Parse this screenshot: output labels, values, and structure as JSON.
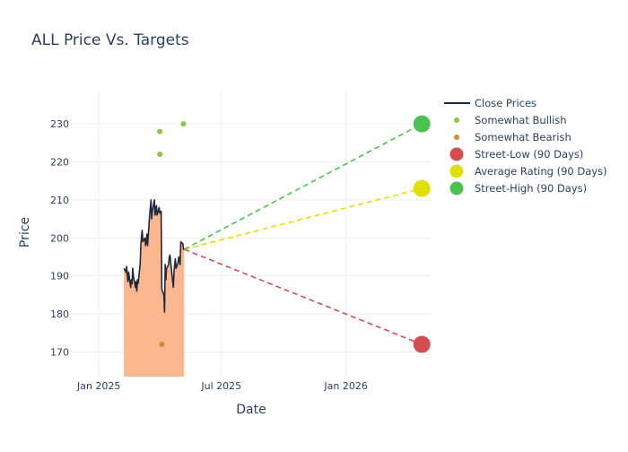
{
  "chart_data": {
    "type": "line",
    "title": "ALL Price Vs. Targets",
    "xlabel": "Date",
    "ylabel": "Price",
    "x_range": [
      "2024-11-22",
      "2026-05-06"
    ],
    "ylim": [
      163.5,
      239
    ],
    "x_ticks": [
      {
        "date": "2025-01-01",
        "label": "Jan 2025"
      },
      {
        "date": "2025-07-01",
        "label": "Jul 2025"
      },
      {
        "date": "2026-01-01",
        "label": "Jan 2026"
      }
    ],
    "y_ticks": [
      170,
      180,
      190,
      200,
      210,
      220,
      230
    ],
    "grid": true,
    "legend_position": "top-right",
    "colors": {
      "close": "#1f2a3c",
      "fill": "#fbb790",
      "bullish": "#8dc63f",
      "bearish": "#d4892a",
      "low": "#d64c4f",
      "avg": "#e0e000",
      "high": "#4cc24e",
      "text": "#2a3f5f"
    },
    "series": [
      {
        "name": "Close Prices",
        "type": "line",
        "x": [
          "2025-02-07",
          "2025-02-10",
          "2025-02-11",
          "2025-02-12",
          "2025-02-13",
          "2025-02-14",
          "2025-02-17",
          "2025-02-18",
          "2025-02-19",
          "2025-02-20",
          "2025-02-21",
          "2025-02-24",
          "2025-02-25",
          "2025-02-26",
          "2025-02-27",
          "2025-02-28",
          "2025-03-03",
          "2025-03-04",
          "2025-03-05",
          "2025-03-06",
          "2025-03-07",
          "2025-03-10",
          "2025-03-11",
          "2025-03-12",
          "2025-03-13",
          "2025-03-14",
          "2025-03-17",
          "2025-03-18",
          "2025-03-19",
          "2025-03-20",
          "2025-03-21",
          "2025-03-24",
          "2025-03-25",
          "2025-03-26",
          "2025-03-27",
          "2025-03-28",
          "2025-03-31",
          "2025-04-01",
          "2025-04-02",
          "2025-04-03",
          "2025-04-04",
          "2025-04-07",
          "2025-04-08",
          "2025-04-09",
          "2025-04-10",
          "2025-04-11",
          "2025-04-14",
          "2025-04-15",
          "2025-04-16",
          "2025-04-17",
          "2025-04-18",
          "2025-04-21",
          "2025-04-22",
          "2025-04-23",
          "2025-04-24",
          "2025-04-25",
          "2025-04-28",
          "2025-04-29",
          "2025-04-30",
          "2025-05-01",
          "2025-05-02",
          "2025-05-05",
          "2025-05-06",
          "2025-05-07"
        ],
        "values": [
          192,
          191,
          192.5,
          190,
          188.5,
          191,
          187,
          189,
          188,
          192,
          190,
          187,
          188.5,
          186,
          189,
          188,
          193,
          198,
          200.5,
          202,
          199,
          200,
          198,
          199,
          201,
          198,
          206,
          208,
          210,
          205,
          207,
          210,
          206,
          207,
          208.5,
          206,
          208,
          206.5,
          207,
          207,
          186.5,
          185,
          180.5,
          193,
          189,
          192,
          193,
          195,
          195.5,
          194,
          192,
          187,
          191,
          193,
          194.5,
          192,
          193.5,
          195,
          194,
          193,
          199,
          198.5,
          197,
          197
        ]
      },
      {
        "name": "Somewhat Bullish",
        "type": "scatter",
        "points": [
          {
            "x": "2025-04-01",
            "y": 228
          },
          {
            "x": "2025-04-01",
            "y": 222
          },
          {
            "x": "2025-05-06",
            "y": 230
          }
        ]
      },
      {
        "name": "Somewhat Bearish",
        "type": "scatter",
        "points": [
          {
            "x": "2025-04-04",
            "y": 172
          }
        ]
      },
      {
        "name": "Street-Low (90 Days)",
        "type": "target",
        "from": {
          "x": "2025-05-07",
          "y": 197
        },
        "to": {
          "x": "2026-04-23",
          "y": 172
        }
      },
      {
        "name": "Average Rating (90 Days)",
        "type": "target",
        "from": {
          "x": "2025-05-07",
          "y": 197
        },
        "to": {
          "x": "2026-04-23",
          "y": 213
        }
      },
      {
        "name": "Street-High (90 Days)",
        "type": "target",
        "from": {
          "x": "2025-05-07",
          "y": 197
        },
        "to": {
          "x": "2026-04-23",
          "y": 230
        }
      }
    ]
  }
}
